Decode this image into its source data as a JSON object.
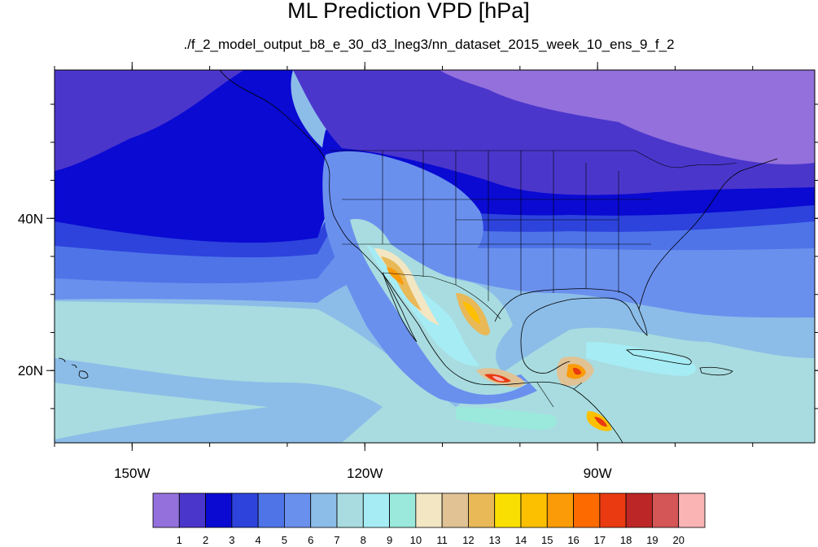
{
  "title": "ML Prediction VPD [hPa]",
  "subtitle": "./f_2_model_output_b8_e_30_d3_lneg3/nn_dataset_2015_week_10_ens_9_f_2",
  "map": {
    "projection": "cylindrical-equidistant",
    "lon_range": [
      -160,
      -62
    ],
    "lat_range": [
      10.5,
      59.5
    ],
    "lon_ticks": [
      {
        "value": -150,
        "label": "150W"
      },
      {
        "value": -120,
        "label": "120W"
      },
      {
        "value": -90,
        "label": "90W"
      }
    ],
    "lat_ticks": [
      {
        "value": 40,
        "label": "40N"
      },
      {
        "value": 20,
        "label": "20N"
      }
    ]
  },
  "colorbar": {
    "levels": [
      "1",
      "2",
      "3",
      "4",
      "5",
      "6",
      "7",
      "8",
      "9",
      "10",
      "11",
      "12",
      "13",
      "14",
      "15",
      "16",
      "17",
      "18",
      "19",
      "20"
    ],
    "colors": [
      "#9370db",
      "#4b36cc",
      "#0a0ad2",
      "#2d43dc",
      "#4f74e8",
      "#6a90ee",
      "#8cbde8",
      "#a8dce0",
      "#a6ecf4",
      "#9be8dc",
      "#f3e6c3",
      "#e0c294",
      "#e9b857",
      "#fae002",
      "#fcc000",
      "#fb9b08",
      "#fc6a00",
      "#e93a12",
      "#bd2626",
      "#d45656",
      "#fbb4b4"
    ]
  }
}
